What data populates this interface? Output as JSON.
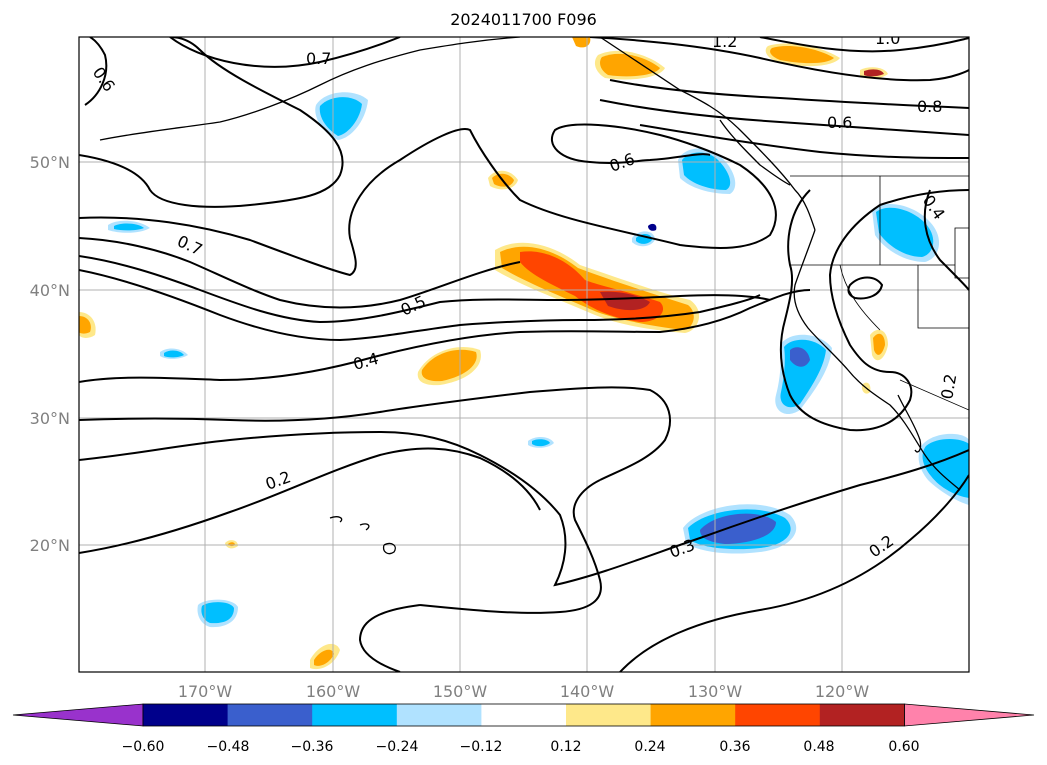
{
  "title": "2024011700 F096",
  "map": {
    "lat_labels": [
      "50°N",
      "40°N",
      "30°N",
      "20°N"
    ],
    "lon_labels": [
      "170°W",
      "160°W",
      "150°W",
      "140°W",
      "130°W",
      "120°W"
    ],
    "contour_labels": [
      "0.6",
      "0.7",
      "1.2",
      "1.0",
      "0.8",
      "0.6",
      "0.6",
      "0.4",
      "0.7",
      "0.5",
      "0.4",
      "0.2",
      "0.3",
      "0.2",
      "0.2"
    ],
    "colorbar_ticks": [
      "−0.60",
      "−0.48",
      "−0.36",
      "−0.24",
      "−0.12",
      "0.12",
      "0.24",
      "0.36",
      "0.48",
      "0.60"
    ],
    "colorbar_colors": [
      "#9932cc",
      "#00008b",
      "#3a5fcd",
      "#00bfff",
      "#b0e2ff",
      "#ffffff",
      "#fee88a",
      "#ffa500",
      "#ff4500",
      "#b22222",
      "#ff82ab"
    ]
  }
}
